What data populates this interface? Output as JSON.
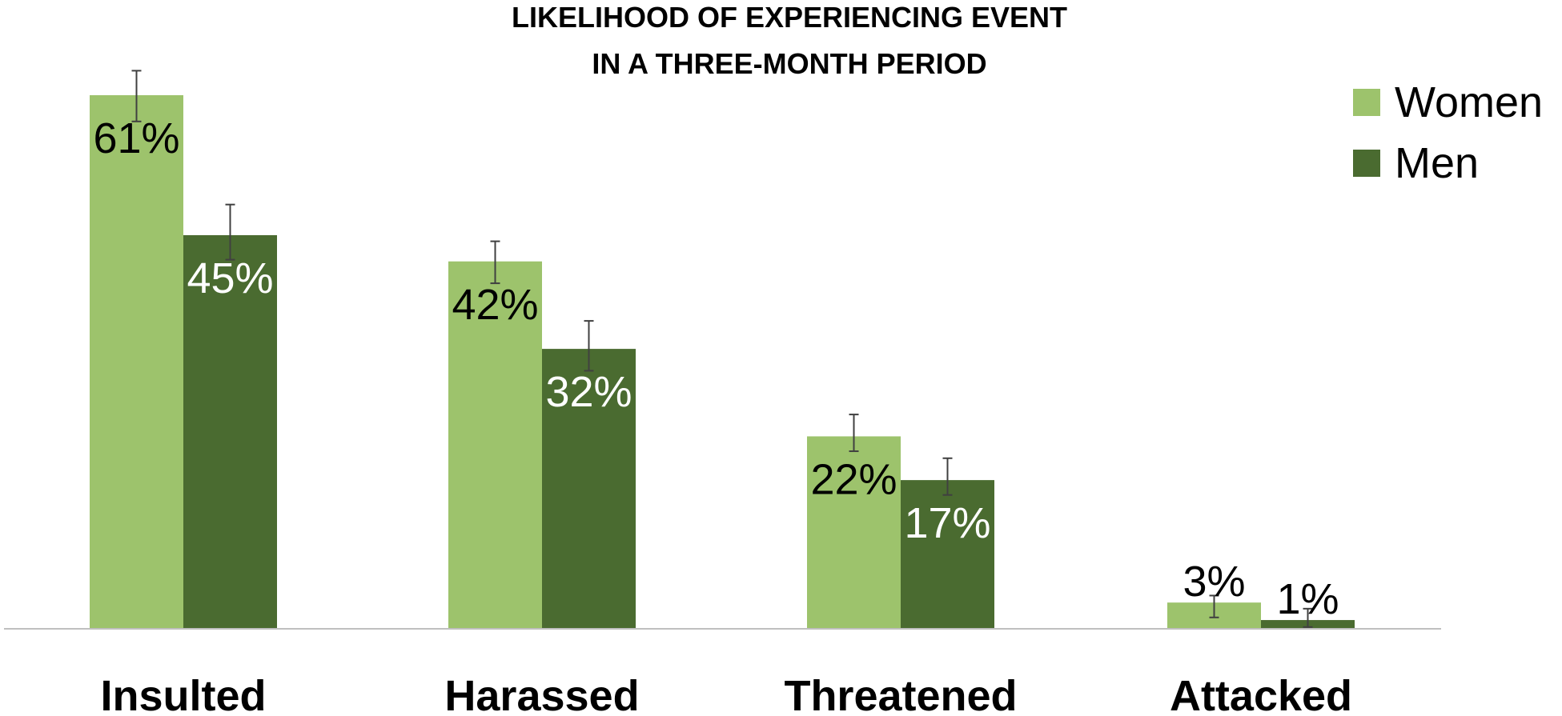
{
  "chart_data": {
    "type": "bar",
    "title_lines": [
      "LIKELIHOOD OF EXPERIENCING EVENT",
      "IN A THREE-MONTH PERIOD"
    ],
    "categories": [
      "Insulted",
      "Harassed",
      "Threatened",
      "Attacked"
    ],
    "series": [
      {
        "name": "Women",
        "color": "#9dc36c",
        "label_color": "#000000",
        "values": [
          61,
          42,
          22,
          3
        ],
        "labels": [
          "61%",
          "42%",
          "22%",
          "3%"
        ],
        "error_low": [
          58,
          39.5,
          20.3,
          1.3
        ],
        "error_high": [
          63.8,
          44.3,
          24.5,
          3.8
        ]
      },
      {
        "name": "Men",
        "color": "#4a6b30",
        "label_color": "#ffffff",
        "values": [
          45,
          32,
          17,
          1
        ],
        "labels": [
          "45%",
          "32%",
          "17%",
          "1%"
        ],
        "error_low": [
          42.2,
          29.5,
          15.3,
          0.2
        ],
        "error_high": [
          48.5,
          35.2,
          19.5,
          2.3
        ]
      }
    ],
    "ylim": [
      0,
      64
    ],
    "grid": false,
    "legend_position": "top-right",
    "axis_color": "#bfbfbf",
    "error_bar_color": "#404040"
  }
}
